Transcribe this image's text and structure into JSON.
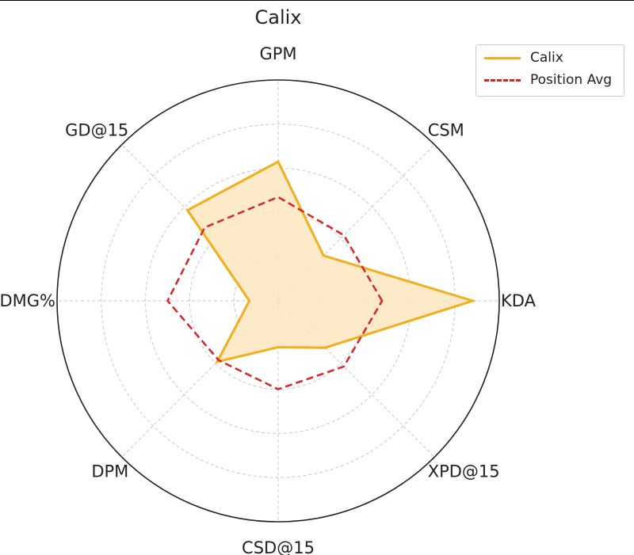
{
  "chart_data": {
    "type": "radar",
    "title": "Calix",
    "axes": [
      "KDA",
      "CSM",
      "GPM",
      "GD@15",
      "DMG%",
      "DPM",
      "CSD@15",
      "XPD@15"
    ],
    "rlim": [
      0,
      1
    ],
    "rings": [
      0.2,
      0.4,
      0.6,
      0.8
    ],
    "grid": true,
    "legend_position": "top-right",
    "series": [
      {
        "name": "Calix",
        "values": [
          0.88,
          0.29,
          0.63,
          0.58,
          0.13,
          0.39,
          0.21,
          0.3
        ],
        "color": "#f2ae1c",
        "fill": "#fde6bf",
        "style": "solid"
      },
      {
        "name": "Position Avg",
        "values": [
          0.47,
          0.42,
          0.47,
          0.47,
          0.5,
          0.38,
          0.4,
          0.42
        ],
        "color": "#d62728",
        "style": "dashed"
      }
    ]
  }
}
